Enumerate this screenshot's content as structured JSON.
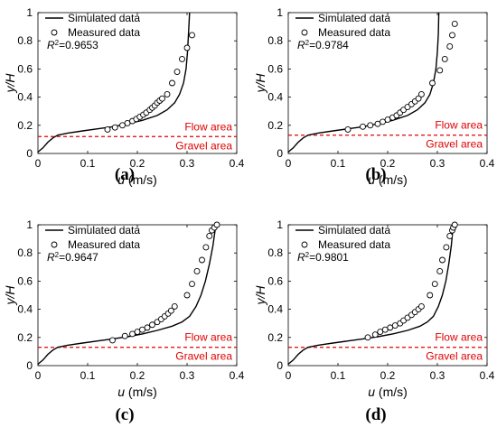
{
  "chart_data": [
    {
      "type": "line",
      "panel_label": "(a)",
      "xlabel_var": "u",
      "xlabel_unit": " (m/s)",
      "ylabel": "y/H",
      "xlim": [
        0,
        0.4
      ],
      "ylim": [
        0,
        1
      ],
      "x_ticks": [
        "0",
        "0.1",
        "0.2",
        "0.3",
        "0.4"
      ],
      "y_ticks": [
        "0",
        "0.2",
        "0.4",
        "0.6",
        "0.8",
        "1"
      ],
      "legend": [
        "Simulated data",
        "Measured data"
      ],
      "r2": "=0.9653",
      "flow_area_label": "Flow area",
      "gravel_area_label": "Gravel area",
      "interface_y": 0.12,
      "series": [
        {
          "name": "Simulated data",
          "x": [
            0.0,
            0.01,
            0.02,
            0.03,
            0.04,
            0.06,
            0.09,
            0.12,
            0.15,
            0.18,
            0.21,
            0.24,
            0.26,
            0.275,
            0.285,
            0.293,
            0.298,
            0.301,
            0.303,
            0.305
          ],
          "y": [
            0.01,
            0.04,
            0.08,
            0.11,
            0.13,
            0.145,
            0.16,
            0.175,
            0.19,
            0.21,
            0.235,
            0.27,
            0.31,
            0.36,
            0.42,
            0.5,
            0.6,
            0.72,
            0.85,
            1.0
          ]
        },
        {
          "name": "Measured data",
          "x": [
            0.14,
            0.155,
            0.17,
            0.18,
            0.19,
            0.198,
            0.205,
            0.212,
            0.218,
            0.225,
            0.23,
            0.235,
            0.24,
            0.245,
            0.25,
            0.26,
            0.27,
            0.28,
            0.29,
            0.3,
            0.31
          ],
          "y": [
            0.17,
            0.185,
            0.2,
            0.215,
            0.23,
            0.245,
            0.26,
            0.275,
            0.29,
            0.31,
            0.325,
            0.34,
            0.36,
            0.375,
            0.39,
            0.42,
            0.5,
            0.58,
            0.67,
            0.75,
            0.84
          ]
        }
      ]
    },
    {
      "type": "line",
      "panel_label": "(b)",
      "xlabel_var": "u",
      "xlabel_unit": " (m/s)",
      "ylabel": "y/H",
      "xlim": [
        0,
        0.4
      ],
      "ylim": [
        0,
        1
      ],
      "x_ticks": [
        "0",
        "0.1",
        "0.2",
        "0.3",
        "0.4"
      ],
      "y_ticks": [
        "0",
        "0.2",
        "0.4",
        "0.6",
        "0.8",
        "1"
      ],
      "legend": [
        "Simulated data",
        "Measured data"
      ],
      "r2": "=0.9784",
      "flow_area_label": "Flow area",
      "gravel_area_label": "Gravel area",
      "interface_y": 0.13,
      "series": [
        {
          "name": "Simulated data",
          "x": [
            0.0,
            0.01,
            0.02,
            0.03,
            0.04,
            0.06,
            0.09,
            0.12,
            0.15,
            0.18,
            0.21,
            0.24,
            0.26,
            0.275,
            0.285,
            0.292,
            0.297,
            0.3,
            0.302,
            0.303
          ],
          "y": [
            0.01,
            0.04,
            0.08,
            0.11,
            0.13,
            0.145,
            0.16,
            0.175,
            0.19,
            0.21,
            0.235,
            0.27,
            0.31,
            0.36,
            0.42,
            0.5,
            0.6,
            0.72,
            0.85,
            1.0
          ]
        },
        {
          "name": "Measured data",
          "x": [
            0.12,
            0.15,
            0.165,
            0.18,
            0.19,
            0.2,
            0.21,
            0.218,
            0.225,
            0.232,
            0.24,
            0.248,
            0.255,
            0.262,
            0.268,
            0.29,
            0.305,
            0.315,
            0.325,
            0.33,
            0.335
          ],
          "y": [
            0.17,
            0.19,
            0.2,
            0.21,
            0.225,
            0.24,
            0.255,
            0.27,
            0.29,
            0.31,
            0.33,
            0.35,
            0.37,
            0.39,
            0.42,
            0.5,
            0.59,
            0.67,
            0.76,
            0.84,
            0.92
          ]
        }
      ]
    },
    {
      "type": "line",
      "panel_label": "(c)",
      "xlabel_var": "u",
      "xlabel_unit": " (m/s)",
      "ylabel": "y/H",
      "xlim": [
        0,
        0.4
      ],
      "ylim": [
        0,
        1
      ],
      "x_ticks": [
        "0",
        "0.1",
        "0.2",
        "0.3",
        "0.4"
      ],
      "y_ticks": [
        "0",
        "0.2",
        "0.4",
        "0.6",
        "0.8",
        "1"
      ],
      "legend": [
        "Simulated data",
        "Measured data"
      ],
      "r2": "=0.9647",
      "flow_area_label": "Flow area",
      "gravel_area_label": "Gravel area",
      "interface_y": 0.13,
      "series": [
        {
          "name": "Simulated data",
          "x": [
            0.0,
            0.01,
            0.02,
            0.03,
            0.04,
            0.06,
            0.09,
            0.12,
            0.15,
            0.18,
            0.21,
            0.24,
            0.27,
            0.29,
            0.305,
            0.318,
            0.328,
            0.337,
            0.345,
            0.352,
            0.358
          ],
          "y": [
            0.01,
            0.04,
            0.08,
            0.11,
            0.13,
            0.145,
            0.16,
            0.175,
            0.19,
            0.205,
            0.225,
            0.25,
            0.28,
            0.31,
            0.35,
            0.42,
            0.5,
            0.6,
            0.72,
            0.85,
            1.0
          ]
        },
        {
          "name": "Measured data",
          "x": [
            0.15,
            0.175,
            0.19,
            0.2,
            0.21,
            0.22,
            0.23,
            0.24,
            0.248,
            0.255,
            0.262,
            0.268,
            0.275,
            0.3,
            0.31,
            0.32,
            0.33,
            0.338,
            0.345,
            0.35,
            0.355,
            0.36
          ],
          "y": [
            0.18,
            0.21,
            0.225,
            0.24,
            0.255,
            0.27,
            0.29,
            0.31,
            0.33,
            0.35,
            0.37,
            0.39,
            0.42,
            0.5,
            0.58,
            0.67,
            0.75,
            0.84,
            0.92,
            0.96,
            0.98,
            1.0
          ]
        }
      ]
    },
    {
      "type": "line",
      "panel_label": "(d)",
      "xlabel_var": "u",
      "xlabel_unit": " (m/s)",
      "ylabel": "y/H",
      "xlim": [
        0,
        0.4
      ],
      "ylim": [
        0,
        1
      ],
      "x_ticks": [
        "0",
        "0.1",
        "0.2",
        "0.3",
        "0.4"
      ],
      "y_ticks": [
        "0",
        "0.2",
        "0.4",
        "0.6",
        "0.8",
        "1"
      ],
      "legend": [
        "Simulated data",
        "Measured data"
      ],
      "r2": "=0.9801",
      "flow_area_label": "Flow area",
      "gravel_area_label": "Gravel area",
      "interface_y": 0.13,
      "series": [
        {
          "name": "Simulated data",
          "x": [
            0.0,
            0.01,
            0.02,
            0.03,
            0.04,
            0.06,
            0.09,
            0.12,
            0.15,
            0.18,
            0.21,
            0.24,
            0.265,
            0.28,
            0.292,
            0.302,
            0.31,
            0.317,
            0.323,
            0.328,
            0.332
          ],
          "y": [
            0.01,
            0.04,
            0.08,
            0.11,
            0.13,
            0.145,
            0.16,
            0.175,
            0.19,
            0.205,
            0.225,
            0.25,
            0.28,
            0.31,
            0.35,
            0.42,
            0.5,
            0.6,
            0.72,
            0.85,
            1.0
          ]
        },
        {
          "name": "Measured data",
          "x": [
            0.16,
            0.175,
            0.185,
            0.195,
            0.205,
            0.215,
            0.225,
            0.232,
            0.24,
            0.248,
            0.255,
            0.262,
            0.268,
            0.285,
            0.295,
            0.305,
            0.31,
            0.318,
            0.325,
            0.33,
            0.332,
            0.335
          ],
          "y": [
            0.2,
            0.22,
            0.24,
            0.255,
            0.27,
            0.285,
            0.3,
            0.32,
            0.34,
            0.36,
            0.38,
            0.4,
            0.42,
            0.5,
            0.58,
            0.67,
            0.75,
            0.84,
            0.92,
            0.96,
            0.98,
            1.0
          ]
        }
      ]
    }
  ]
}
